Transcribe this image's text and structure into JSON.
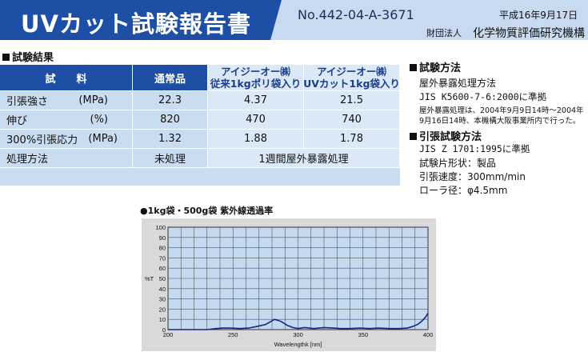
{
  "header": {
    "title": "UVカット試験報告書",
    "report_no": "No.442-04-A-3671",
    "date": "平成16年9月17日",
    "org_type": "財団法人",
    "org_name": "化学物質評価研究機構"
  },
  "results": {
    "heading": "試験結果",
    "columns": {
      "item": "試　　料",
      "normal": "通常品",
      "poly": [
        "アイジーオー㈱",
        "従来1kgポリ袋入り"
      ],
      "uvcut": [
        "アイジーオー㈱",
        "UVカット1kg袋入り"
      ]
    },
    "rows": [
      {
        "label": "引張強さ",
        "unit": "(MPa)",
        "normal": "22.3",
        "poly": "4.37",
        "uvcut": "21.5"
      },
      {
        "label": "伸び",
        "unit": "(%)",
        "normal": "820",
        "poly": "470",
        "uvcut": "740"
      },
      {
        "label": "300%引張応力",
        "unit": "(MPa)",
        "normal": "1.32",
        "poly": "1.88",
        "uvcut": "1.78"
      }
    ],
    "process": {
      "label": "処理方法",
      "normal": "未処理",
      "merged": "1週間屋外暴露処理"
    }
  },
  "method": {
    "heading": "試験方法",
    "line1": "屋外暴露処理方法",
    "line2": "JIS K5600-7-6:2000に準拠",
    "note1": "屋外暴露処理は、2004年9月9日14時〜2004年",
    "note2": "9月16日14時、本機構大阪事業所内で行った。"
  },
  "tensile": {
    "heading": "引張試験方法",
    "line1": "JIS Z 1701:1995に準拠",
    "line2": "試験片形状：製品",
    "line3": "引張速度：300mm/min",
    "line4": "ローラ径：φ4.5mm"
  },
  "chart_data": {
    "type": "line",
    "title": "●1kg袋・500g袋 紫外線透過率",
    "xlabel": "Wavelengthk [nm]",
    "ylabel": "%T",
    "xlim": [
      200,
      400
    ],
    "ylim": [
      0,
      100
    ],
    "xticks": [
      200,
      250,
      300,
      350,
      400
    ],
    "yticks": [
      0,
      10,
      20,
      30,
      40,
      50,
      60,
      70,
      80,
      90,
      100
    ],
    "grid": true,
    "series": [
      {
        "color": "#1a237e",
        "x": [
          200,
          215,
          230,
          237,
          242,
          248,
          255,
          262,
          268,
          275,
          282,
          287,
          292,
          296,
          300,
          305,
          312,
          320,
          327,
          333,
          340,
          348,
          355,
          362,
          370,
          378,
          384,
          388,
          392,
          395,
          398,
          400
        ],
        "y": [
          0,
          0,
          0,
          1,
          1.5,
          1.5,
          1,
          1.5,
          3,
          5,
          10,
          8,
          4,
          2,
          1,
          2,
          1,
          2,
          1.5,
          1,
          1,
          1.5,
          1,
          1.5,
          1,
          1,
          1.5,
          3,
          5,
          8,
          12,
          16
        ]
      }
    ]
  }
}
